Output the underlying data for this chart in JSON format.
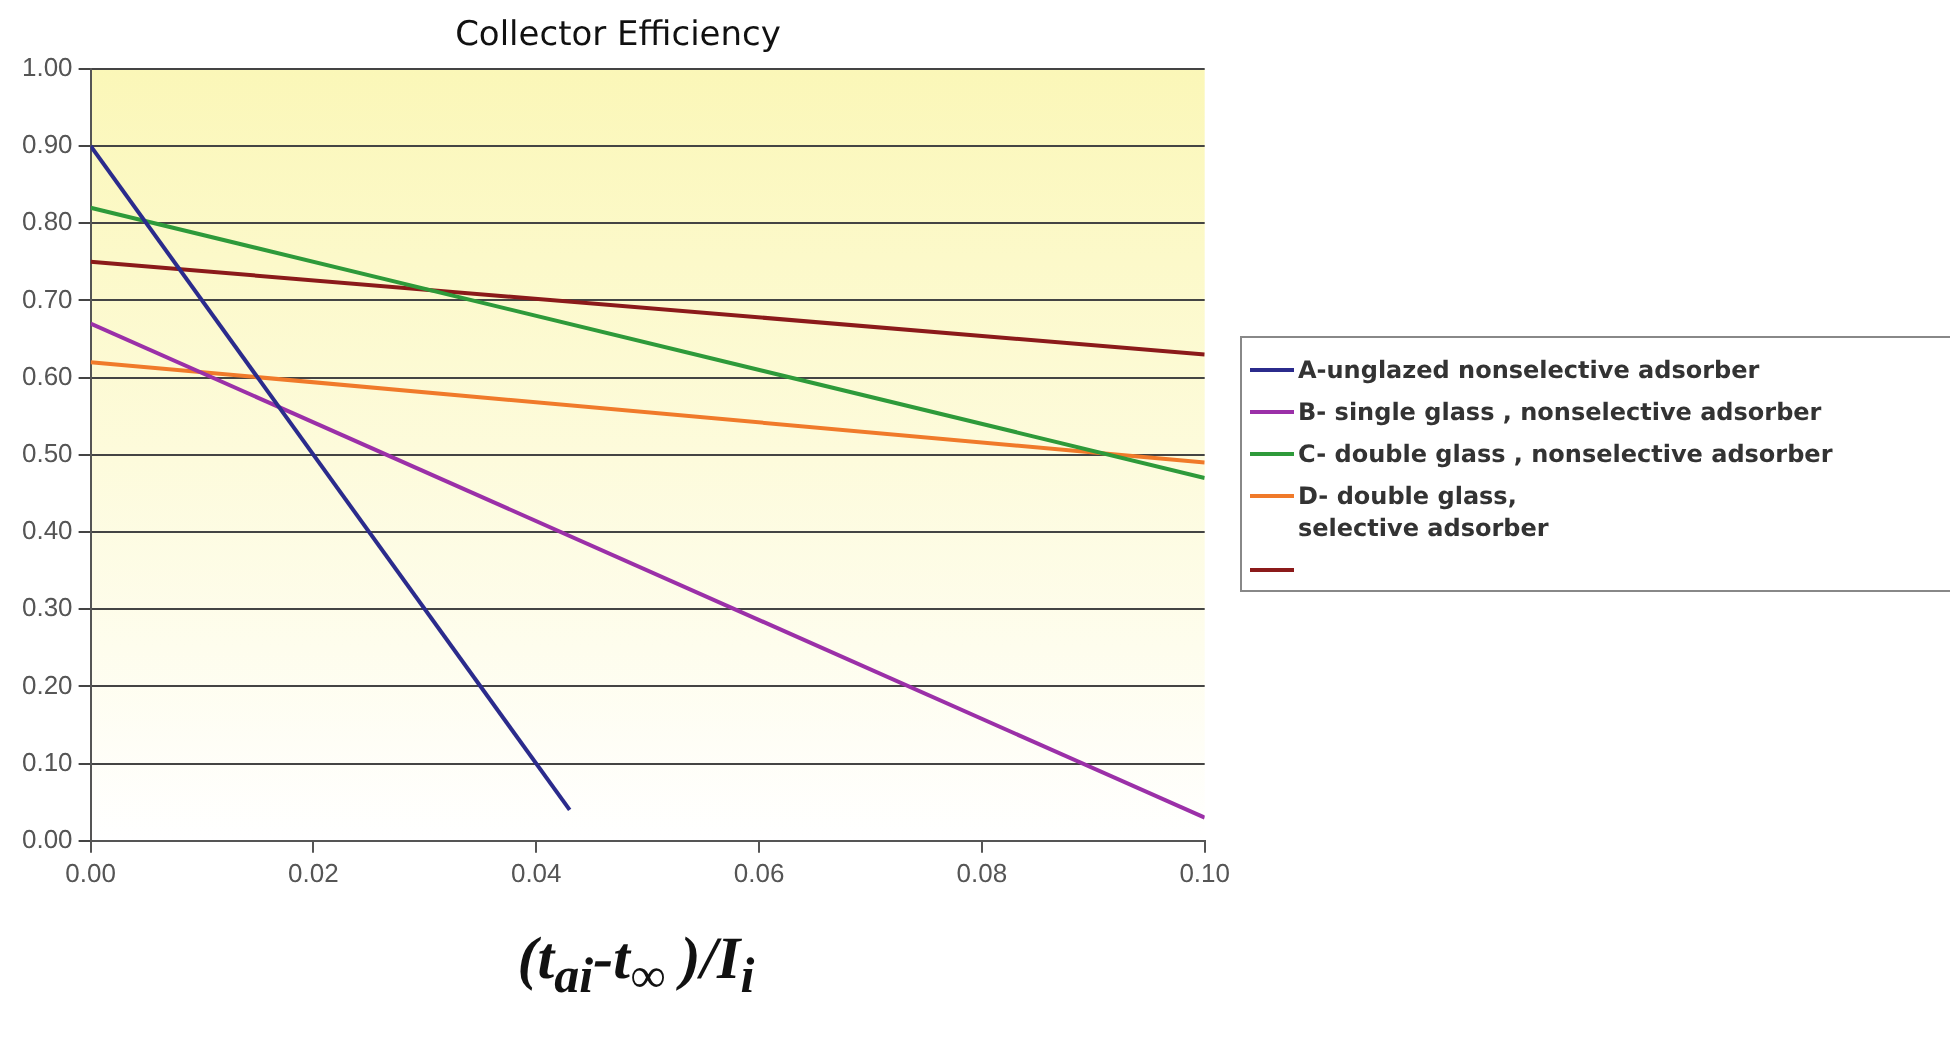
{
  "chart_data": {
    "type": "line",
    "title": "Collector Efficiency",
    "xlabel": "(t$_{ai}$-t$_{∞}$ )/I$_{i}$",
    "xlim": [
      0,
      0.1
    ],
    "xticks": [
      {
        "value": 0,
        "label": "0.00"
      },
      {
        "value": 0.02,
        "label": "0.02"
      },
      {
        "value": 0.04,
        "label": "0.04"
      },
      {
        "value": 0.06,
        "label": "0.06"
      },
      {
        "value": 0.08,
        "label": "0.08"
      },
      {
        "value": 0.1,
        "label": "0.10"
      }
    ],
    "ylim": [
      0,
      1
    ],
    "yticks": [
      {
        "value": 0,
        "label": "0.00"
      },
      {
        "value": 0.1,
        "label": "0.10"
      },
      {
        "value": 0.2,
        "label": "0.20"
      },
      {
        "value": 0.3,
        "label": "0.30"
      },
      {
        "value": 0.4,
        "label": "0.40"
      },
      {
        "value": 0.5,
        "label": "0.50"
      },
      {
        "value": 0.6,
        "label": "0.60"
      },
      {
        "value": 0.7,
        "label": "0.70"
      },
      {
        "value": 0.8,
        "label": "0.80"
      },
      {
        "value": 0.9,
        "label": "0.90"
      },
      {
        "value": 1,
        "label": "1.00"
      }
    ],
    "grid": "y",
    "legend": "right",
    "marker": "none",
    "line_style": "solid",
    "series": [
      {
        "name": "A-unglazed  nonselective adsorber",
        "color": "#2b2b8c",
        "x": [
          0,
          0.043
        ],
        "values": [
          0.9,
          0.04
        ]
      },
      {
        "name": "B- single glass , nonselective adsorber",
        "color": "#9b30a8",
        "x": [
          0,
          0.1
        ],
        "values": [
          0.67,
          0.03
        ]
      },
      {
        "name": "C- double glass , nonselective adsorber",
        "color": "#2e9a3a",
        "x": [
          0,
          0.1
        ],
        "values": [
          0.82,
          0.47
        ]
      },
      {
        "name": "D- double glass,\nselective adsorber",
        "color": "#f07a2a",
        "x": [
          0,
          0.1
        ],
        "values": [
          0.62,
          0.49
        ]
      },
      {
        "color": "#8b1a1a",
        "x": [
          0,
          0.1
        ],
        "values": [
          0.75,
          0.63
        ]
      }
    ]
  }
}
